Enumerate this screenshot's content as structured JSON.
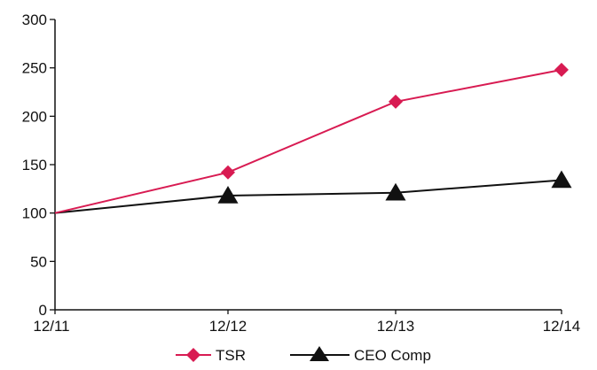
{
  "chart_data": {
    "type": "line",
    "title": "",
    "xlabel": "",
    "ylabel": "",
    "categories": [
      "12/11",
      "12/12",
      "12/13",
      "12/14"
    ],
    "ylim": [
      0,
      300
    ],
    "yticks": [
      0,
      50,
      100,
      150,
      200,
      250,
      300
    ],
    "grid": false,
    "legend_position": "bottom",
    "series": [
      {
        "name": "TSR",
        "values": [
          100,
          142,
          215,
          248
        ],
        "color": "#d81b52",
        "marker": "diamond"
      },
      {
        "name": "CEO Comp",
        "values": [
          100,
          118,
          121,
          134
        ],
        "color": "#111111",
        "marker": "triangle"
      }
    ]
  }
}
